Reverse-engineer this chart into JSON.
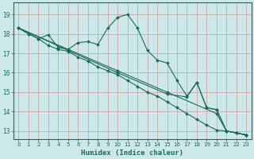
{
  "xlabel": "Humidex (Indice chaleur)",
  "bg_color": "#cce8e8",
  "grid_color": "#aacccc",
  "line_color": "#1a6b5a",
  "xlim": [
    -0.5,
    23.5
  ],
  "ylim": [
    12.6,
    19.6
  ],
  "yticks": [
    13,
    14,
    15,
    16,
    17,
    18,
    19
  ],
  "xticks": [
    0,
    1,
    2,
    3,
    4,
    5,
    6,
    7,
    8,
    9,
    10,
    11,
    12,
    13,
    14,
    15,
    16,
    17,
    18,
    19,
    20,
    21,
    22,
    23
  ],
  "series1": [
    [
      0,
      18.3
    ],
    [
      1,
      18.0
    ],
    [
      2,
      17.75
    ],
    [
      3,
      17.95
    ],
    [
      4,
      17.3
    ],
    [
      5,
      17.2
    ],
    [
      6,
      17.55
    ],
    [
      7,
      17.6
    ],
    [
      8,
      17.45
    ],
    [
      9,
      18.3
    ],
    [
      10,
      18.85
    ],
    [
      11,
      19.0
    ],
    [
      12,
      18.3
    ],
    [
      13,
      17.15
    ],
    [
      14,
      16.65
    ],
    [
      15,
      16.5
    ],
    [
      16,
      15.6
    ],
    [
      17,
      14.8
    ],
    [
      18,
      15.5
    ],
    [
      19,
      14.2
    ],
    [
      20,
      14.1
    ],
    [
      21,
      13.0
    ],
    [
      22,
      12.9
    ],
    [
      23,
      12.8
    ]
  ],
  "series2": [
    [
      0,
      18.3
    ],
    [
      1,
      18.0
    ],
    [
      2,
      17.75
    ],
    [
      3,
      17.4
    ],
    [
      4,
      17.2
    ],
    [
      5,
      17.1
    ],
    [
      6,
      16.8
    ],
    [
      7,
      16.6
    ],
    [
      8,
      16.3
    ],
    [
      9,
      16.1
    ],
    [
      10,
      15.9
    ],
    [
      11,
      15.6
    ],
    [
      12,
      15.3
    ],
    [
      13,
      15.0
    ],
    [
      14,
      14.8
    ],
    [
      15,
      14.5
    ],
    [
      16,
      14.2
    ],
    [
      17,
      13.9
    ],
    [
      18,
      13.6
    ],
    [
      19,
      13.3
    ],
    [
      20,
      13.05
    ],
    [
      21,
      13.0
    ],
    [
      22,
      12.9
    ],
    [
      23,
      12.8
    ]
  ],
  "series3": [
    [
      0,
      18.3
    ],
    [
      5,
      17.2
    ],
    [
      10,
      16.1
    ],
    [
      15,
      15.0
    ],
    [
      20,
      13.9
    ],
    [
      21,
      13.0
    ],
    [
      22,
      12.9
    ],
    [
      23,
      12.8
    ]
  ],
  "series4": [
    [
      0,
      18.3
    ],
    [
      5,
      17.15
    ],
    [
      10,
      16.0
    ],
    [
      15,
      14.9
    ],
    [
      17,
      14.75
    ],
    [
      18,
      15.5
    ],
    [
      19,
      14.2
    ],
    [
      20,
      14.1
    ],
    [
      21,
      13.0
    ],
    [
      22,
      12.9
    ],
    [
      23,
      12.8
    ]
  ]
}
